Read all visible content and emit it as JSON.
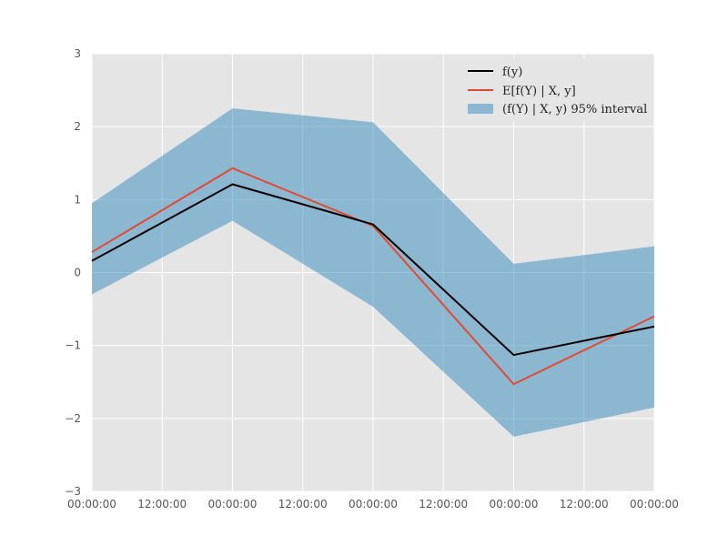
{
  "chart_data": {
    "type": "line",
    "title": "",
    "xlabel": "",
    "ylabel": "",
    "x_tick_labels": [
      "00:00:00",
      "12:00:00",
      "00:00:00",
      "12:00:00",
      "00:00:00",
      "12:00:00",
      "00:00:00",
      "12:00:00",
      "00:00:00"
    ],
    "y_tick_labels": [
      "3",
      "2",
      "1",
      "0",
      "−1",
      "−2",
      "−3"
    ],
    "y_ticks": [
      3,
      2,
      1,
      0,
      -1,
      -2,
      -3
    ],
    "xlim": [
      0,
      4
    ],
    "ylim": [
      -3,
      3
    ],
    "x": [
      0,
      1,
      2,
      3,
      4
    ],
    "x_unit": "days",
    "grid": true,
    "background": "#e5e5e5",
    "legend_position": "top-right",
    "series": [
      {
        "name": "f(y)",
        "kind": "line",
        "color": "#000000",
        "values": [
          0.16,
          1.21,
          0.66,
          -1.13,
          -0.74
        ]
      },
      {
        "name": "E[f(Y) | X, y]",
        "kind": "line",
        "color": "#e24a33",
        "values": [
          0.28,
          1.43,
          0.64,
          -1.53,
          -0.6
        ]
      }
    ],
    "band": {
      "name": "(f(Y) | X, y) 95% interval",
      "color": "#348abd",
      "lower": [
        -0.3,
        0.71,
        -0.47,
        -2.25,
        -1.85
      ],
      "upper": [
        0.95,
        2.25,
        2.06,
        0.12,
        0.36
      ]
    }
  }
}
